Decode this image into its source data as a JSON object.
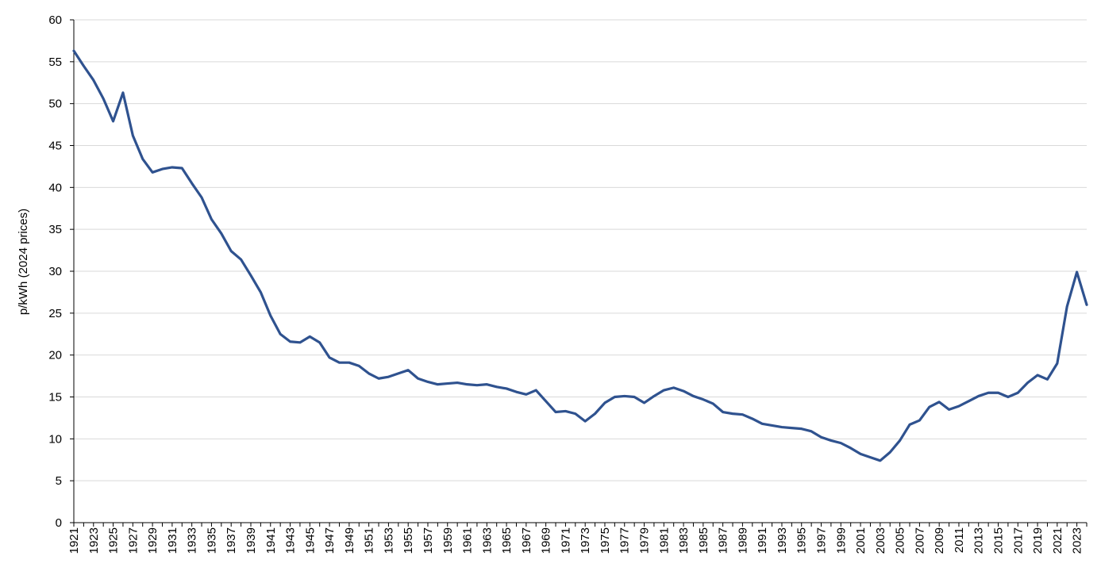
{
  "chart_data": {
    "type": "line",
    "title": "",
    "xlabel": "",
    "ylabel": "p/kWh (2024 prices)",
    "ylim": [
      0,
      60
    ],
    "yticks": [
      0,
      5,
      10,
      15,
      20,
      25,
      30,
      35,
      40,
      45,
      50,
      55,
      60
    ],
    "xlim": [
      1921,
      2024
    ],
    "xtick_labels": [
      "1921",
      "1923",
      "1925",
      "1927",
      "1929",
      "1931",
      "1933",
      "1935",
      "1937",
      "1939",
      "1941",
      "1943",
      "1945",
      "1947",
      "1949",
      "1951",
      "1953",
      "1955",
      "1957",
      "1959",
      "1961",
      "1963",
      "1965",
      "1967",
      "1969",
      "1971",
      "1973",
      "1975",
      "1977",
      "1979",
      "1981",
      "1983",
      "1985",
      "1987",
      "1989",
      "1991",
      "1993",
      "1995",
      "1997",
      "1999",
      "2001",
      "2003",
      "2005",
      "2007",
      "2009",
      "2011",
      "2013",
      "2015",
      "2017",
      "2019",
      "2021",
      "2023"
    ],
    "grid": true,
    "legend": "none",
    "line_color": "#2f528f",
    "series": [
      {
        "x": [
          1921,
          1922,
          1923,
          1924,
          1925,
          1926,
          1927,
          1928,
          1929,
          1930,
          1931,
          1932,
          1933,
          1934,
          1935,
          1936,
          1937,
          1938,
          1939,
          1940,
          1941,
          1942,
          1943,
          1944,
          1945,
          1946,
          1947,
          1948,
          1949,
          1950,
          1951,
          1952,
          1953,
          1954,
          1955,
          1956,
          1957,
          1958,
          1959,
          1960,
          1961,
          1962,
          1963,
          1964,
          1965,
          1966,
          1967,
          1968,
          1969,
          1970,
          1971,
          1972,
          1973,
          1974,
          1975,
          1976,
          1977,
          1978,
          1979,
          1980,
          1981,
          1982,
          1983,
          1984,
          1985,
          1986,
          1987,
          1988,
          1989,
          1990,
          1991,
          1992,
          1993,
          1994,
          1995,
          1996,
          1997,
          1998,
          1999,
          2000,
          2001,
          2002,
          2003,
          2004,
          2005,
          2006,
          2007,
          2008,
          2009,
          2010,
          2011,
          2012,
          2013,
          2014,
          2015,
          2016,
          2017,
          2018,
          2019,
          2020,
          2021,
          2022,
          2023,
          2024
        ],
        "values": [
          56.3,
          54.5,
          52.8,
          50.6,
          47.9,
          51.3,
          46.2,
          43.4,
          41.8,
          42.2,
          42.4,
          42.3,
          40.5,
          38.8,
          36.2,
          34.5,
          32.4,
          31.4,
          29.5,
          27.5,
          24.7,
          22.5,
          21.6,
          21.5,
          22.2,
          21.5,
          19.7,
          19.1,
          19.1,
          18.7,
          17.8,
          17.2,
          17.4,
          17.8,
          18.2,
          17.2,
          16.8,
          16.5,
          16.6,
          16.7,
          16.5,
          16.4,
          16.5,
          16.2,
          16.0,
          15.6,
          15.3,
          15.8,
          14.5,
          13.2,
          13.3,
          13.0,
          12.1,
          13.0,
          14.3,
          15.0,
          15.1,
          15.0,
          14.3,
          15.1,
          15.8,
          16.1,
          15.7,
          15.1,
          14.7,
          14.2,
          13.2,
          13.0,
          12.9,
          12.4,
          11.8,
          11.6,
          11.4,
          11.3,
          11.2,
          10.9,
          10.2,
          9.8,
          9.5,
          8.9,
          8.2,
          7.8,
          7.4,
          8.4,
          9.8,
          11.7,
          12.2,
          13.8,
          14.4,
          13.5,
          13.9,
          14.5,
          15.1,
          15.5,
          15.5,
          15.0,
          15.5,
          16.7,
          17.6,
          17.1,
          19.0,
          25.8,
          29.9,
          26.0
        ]
      }
    ]
  }
}
